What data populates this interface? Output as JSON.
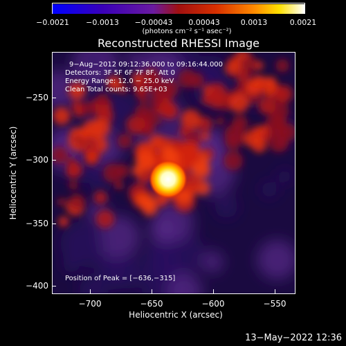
{
  "colorbar": {
    "ticks": [
      "−0.0021",
      "−0.0013",
      "−0.00043",
      "0.00043",
      "0.0013",
      "0.0021"
    ],
    "unit": "(photons cm⁻² s⁻¹ asec⁻²)",
    "colors": [
      "#0000ff",
      "#3a00b8",
      "#6a1aa0",
      "#a01010",
      "#d83000",
      "#ff8a00",
      "#ffe000",
      "#ffffff"
    ]
  },
  "title": "Reconstructed RHESSI Image",
  "info": {
    "time": "9−Aug−2012 09:12:36.000 to 09:16:44.000",
    "detectors": "Detectors: 3F 5F 6F 7F 8F, Att 0",
    "energy": "Energy Range: 12.0 − 25.0 keV",
    "clean": "Clean     Total counts: 9.65E+03",
    "peak": "Position of Peak = [−636,−315]"
  },
  "axes": {
    "xlabel": "Heliocentric X (arcsec)",
    "ylabel": "Heliocentric Y (arcsec)",
    "xticks": [
      "−700",
      "−650",
      "−600",
      "−550"
    ],
    "yticks": [
      "−250",
      "−300",
      "−350",
      "−400"
    ],
    "xlim": [
      -730,
      -533
    ],
    "ylim": [
      -407,
      -212
    ]
  },
  "peak": {
    "x": -636,
    "y": -315
  },
  "footer": {
    "timestamp": "13−May−2022 12:36"
  }
}
